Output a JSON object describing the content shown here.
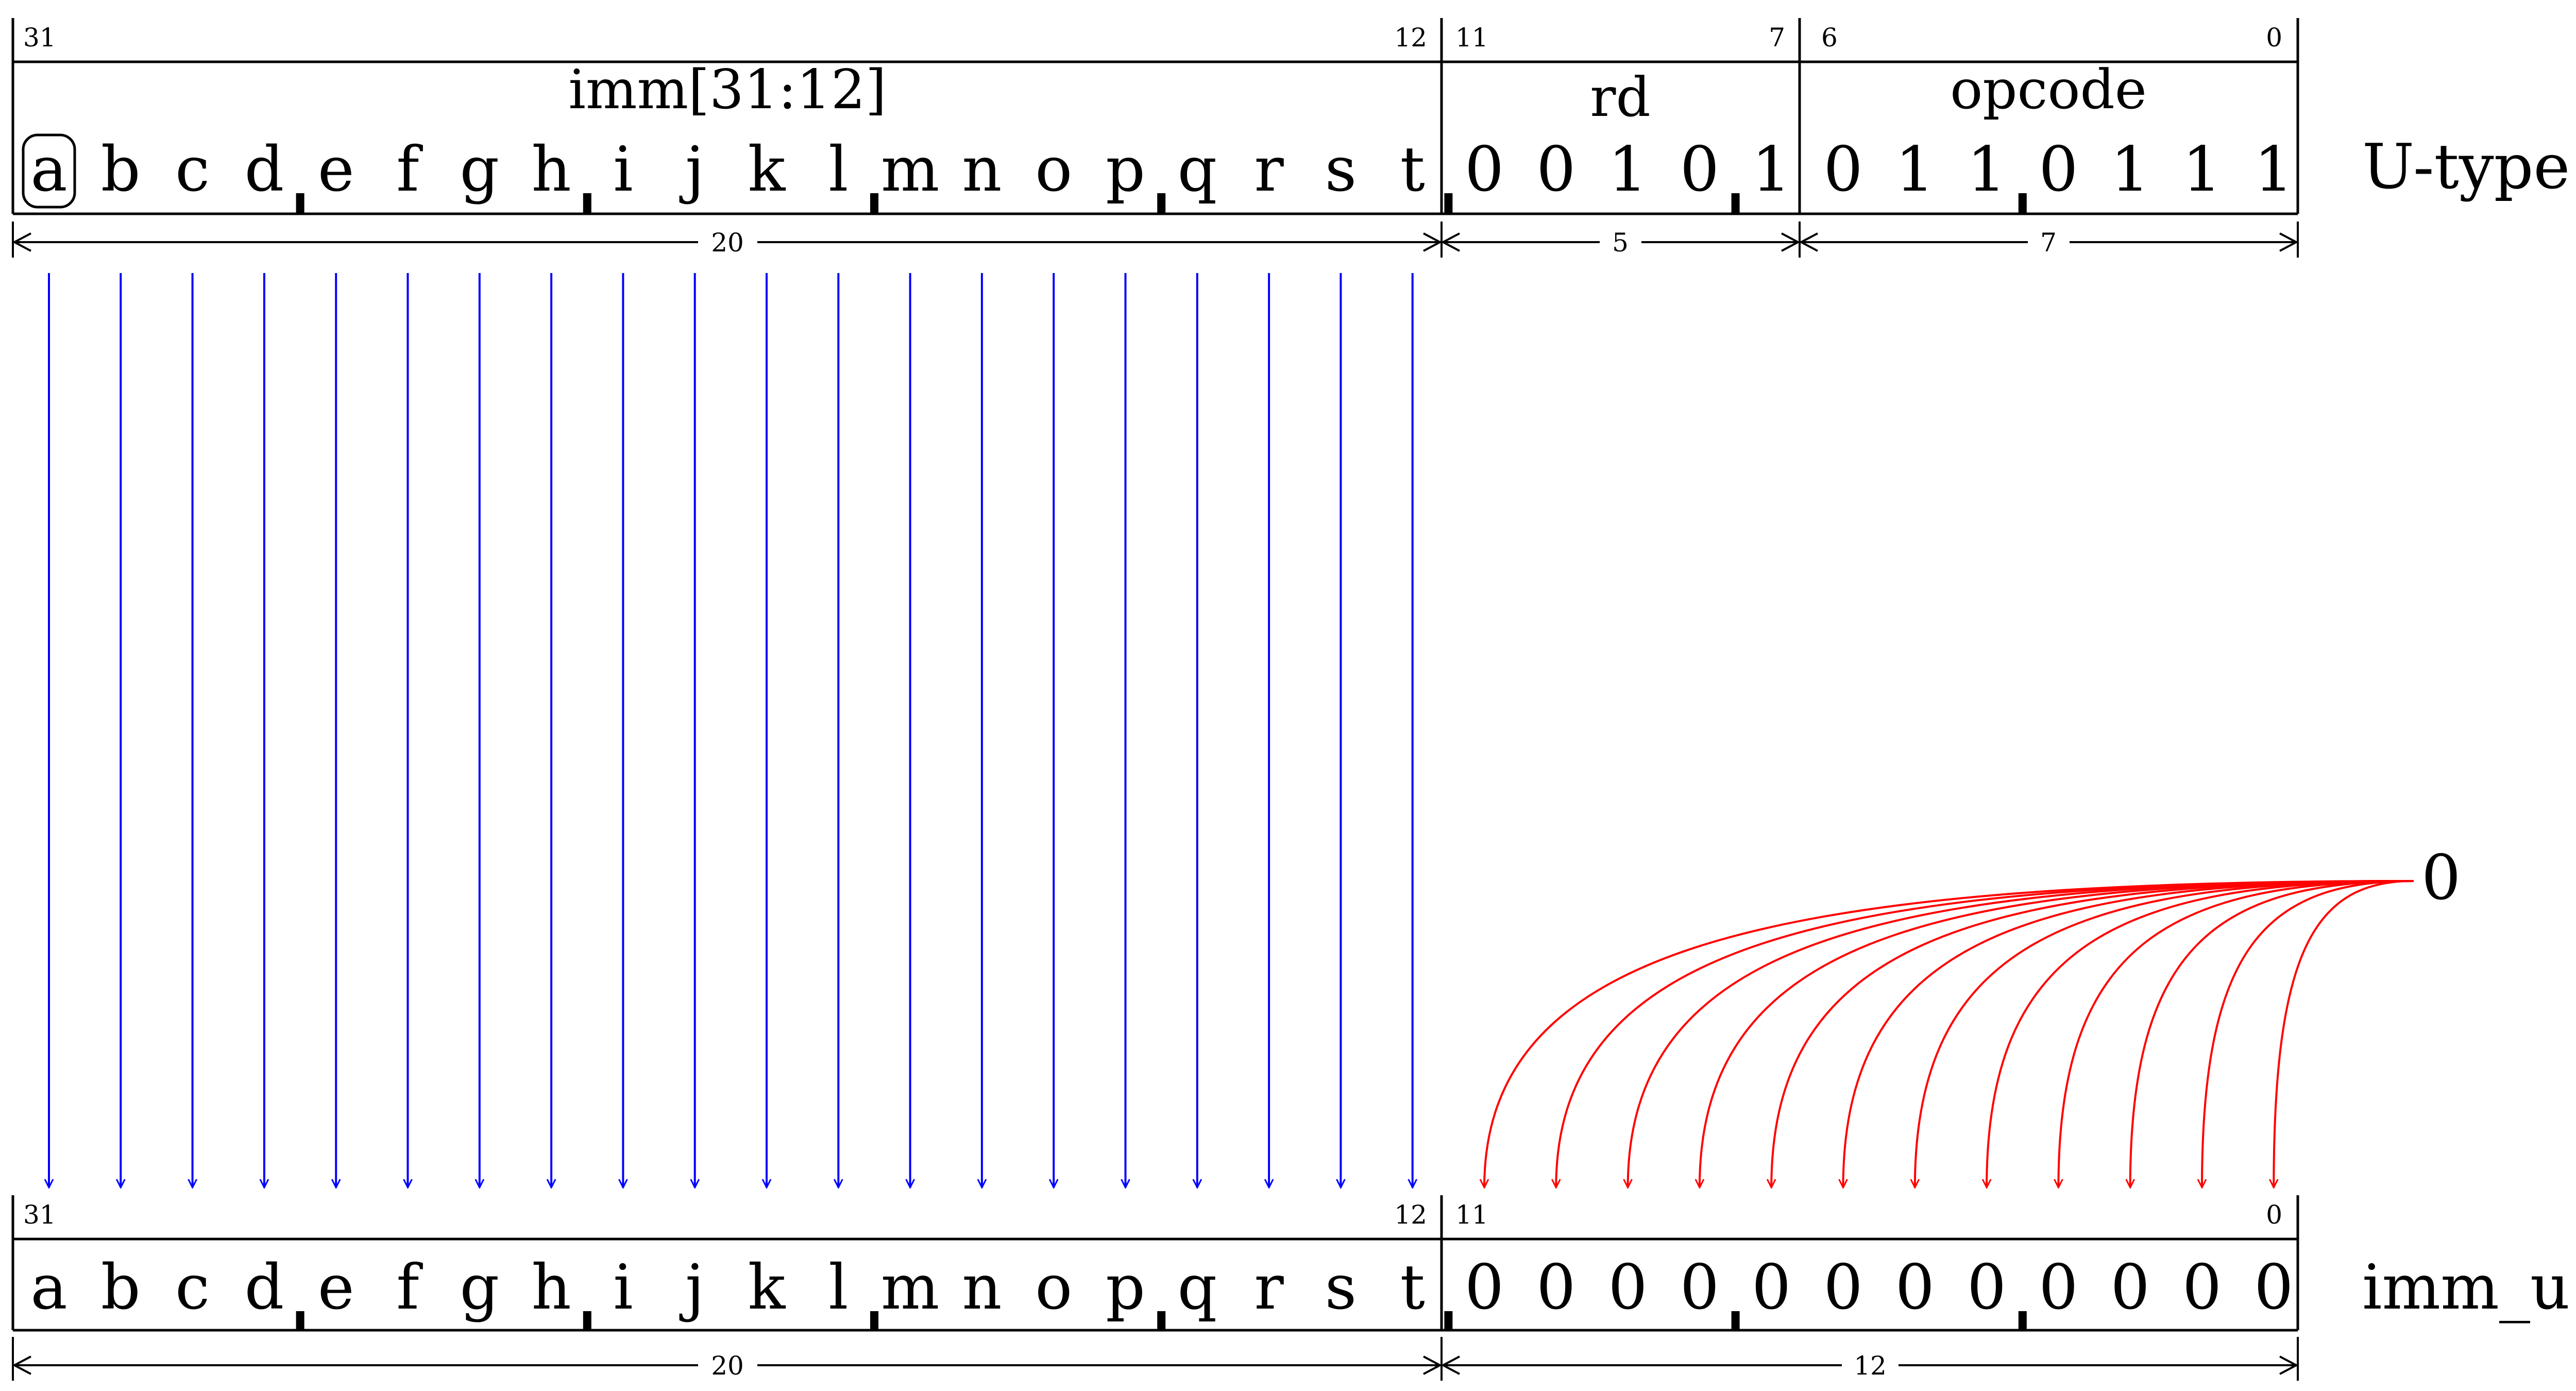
{
  "utype": {
    "row_label": "U-type",
    "bit_numbers": {
      "b31": "31",
      "b12": "12",
      "b11": "11",
      "b7": "7",
      "b6": "6",
      "b0": "0"
    },
    "fields": {
      "imm": "imm[31:12]",
      "rd": "rd",
      "opcode": "opcode"
    },
    "imm_bits": [
      "a",
      "b",
      "c",
      "d",
      "e",
      "f",
      "g",
      "h",
      "i",
      "j",
      "k",
      "l",
      "m",
      "n",
      "o",
      "p",
      "q",
      "r",
      "s",
      "t"
    ],
    "rd_bits": [
      "0",
      "0",
      "1",
      "0",
      "1"
    ],
    "opcode_bits": [
      "0",
      "1",
      "1",
      "0",
      "1",
      "1",
      "1"
    ],
    "widths": {
      "imm": "20",
      "rd": "5",
      "opcode": "7"
    }
  },
  "immu": {
    "row_label": "imm_u",
    "bit_numbers": {
      "b31": "31",
      "b12": "12",
      "b11": "11",
      "b0": "0"
    },
    "upper_bits": [
      "a",
      "b",
      "c",
      "d",
      "e",
      "f",
      "g",
      "h",
      "i",
      "j",
      "k",
      "l",
      "m",
      "n",
      "o",
      "p",
      "q",
      "r",
      "s",
      "t"
    ],
    "lower_bits": [
      "0",
      "0",
      "0",
      "0",
      "0",
      "0",
      "0",
      "0",
      "0",
      "0",
      "0",
      "0"
    ],
    "widths": {
      "upper": "20",
      "lower": "12"
    }
  },
  "zero_source": "0",
  "colors": {
    "copy_arrows": "#0000ff",
    "zero_arrows": "#ff0000",
    "lines": "#000000"
  }
}
